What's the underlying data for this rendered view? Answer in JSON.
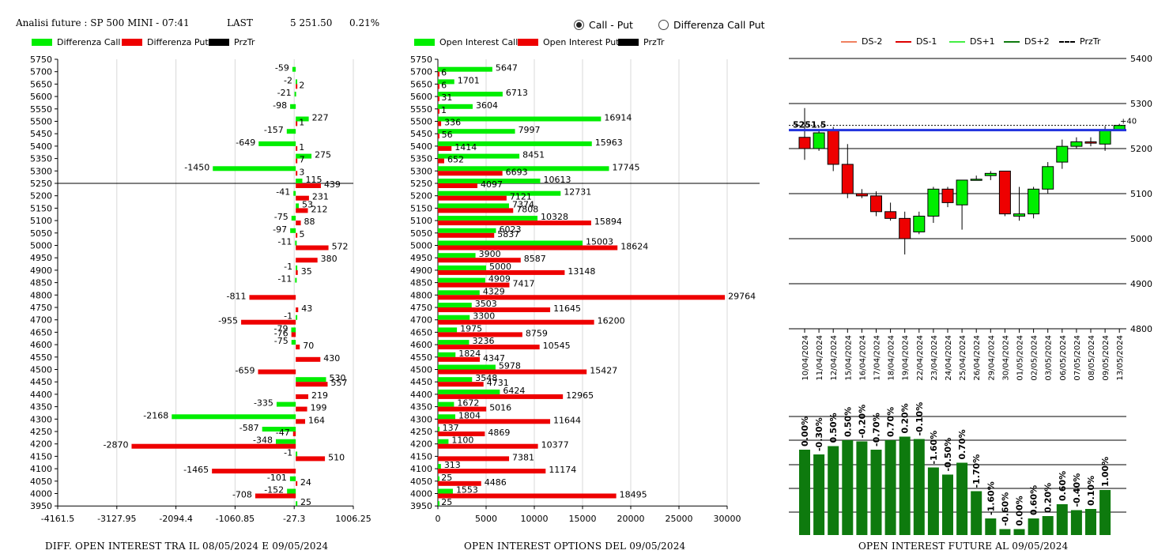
{
  "header": {
    "title": "Analisi future : SP 500 MINI - 07:41",
    "last_label": "LAST",
    "last_value": "5 251.50",
    "change": "0.21%"
  },
  "view_toggle": {
    "options": [
      "Call - Put",
      "Differenza Call Put"
    ],
    "selected": 0
  },
  "colors": {
    "call": "#00ee00",
    "put": "#ee0000",
    "price": "#000000",
    "future_bar": "#0e7a0e",
    "level_line": "#2233dd"
  },
  "chart_data": [
    {
      "id": "diff",
      "type": "bar",
      "orientation": "horizontal",
      "title": "DIFF. OPEN INTEREST TRA IL 08/05/2024 E 09/05/2024",
      "legend": [
        "Differenza Call",
        "Differenza Put",
        "PrzTr"
      ],
      "strikes": [
        5750,
        5700,
        5650,
        5600,
        5550,
        5500,
        5450,
        5400,
        5350,
        5300,
        5250,
        5200,
        5150,
        5100,
        5050,
        5000,
        4950,
        4900,
        4850,
        4800,
        4750,
        4700,
        4650,
        4600,
        4550,
        4500,
        4450,
        4400,
        4350,
        4300,
        4250,
        4200,
        4150,
        4100,
        4050,
        4000,
        3950
      ],
      "series": [
        {
          "name": "Differenza Call",
          "values": [
            null,
            -59,
            -2,
            -21,
            -98,
            227,
            -157,
            -649,
            275,
            -1450,
            115,
            -41,
            53,
            -75,
            -97,
            -11,
            null,
            -1,
            -11,
            null,
            null,
            -1,
            -79,
            -75,
            null,
            null,
            530,
            null,
            -335,
            -2168,
            -587,
            -348,
            -1,
            null,
            -101,
            -152,
            25
          ]
        },
        {
          "name": "Differenza Put",
          "values": [
            null,
            null,
            2,
            null,
            null,
            1,
            null,
            1,
            7,
            3,
            439,
            231,
            212,
            88,
            5,
            572,
            380,
            35,
            null,
            -811,
            43,
            -955,
            -76,
            70,
            430,
            -659,
            557,
            219,
            199,
            164,
            -47,
            -2870,
            510,
            -1465,
            24,
            -708,
            null
          ]
        }
      ],
      "price_line": 5250,
      "xticks": [
        "-4161.5",
        "-3127.95",
        "-2094.4",
        "-1060.85",
        "-27.3",
        "1006.25"
      ],
      "xlim": [
        -4161.5,
        1006.25
      ]
    },
    {
      "id": "oi",
      "type": "bar",
      "orientation": "horizontal",
      "title": "OPEN INTEREST OPTIONS DEL 09/05/2024",
      "legend": [
        "Open Interest Call",
        "Open Interest Put",
        "PrzTr"
      ],
      "strikes": [
        5750,
        5700,
        5650,
        5600,
        5550,
        5500,
        5450,
        5400,
        5350,
        5300,
        5250,
        5200,
        5150,
        5100,
        5050,
        5000,
        4950,
        4900,
        4850,
        4800,
        4750,
        4700,
        4650,
        4600,
        4550,
        4500,
        4450,
        4400,
        4350,
        4300,
        4250,
        4200,
        4150,
        4100,
        4050,
        4000,
        3950
      ],
      "series": [
        {
          "name": "Open Interest Call",
          "values": [
            null,
            5647,
            1701,
            6713,
            3604,
            16914,
            7997,
            15963,
            8451,
            17745,
            10613,
            12731,
            7374,
            10328,
            6023,
            15003,
            3900,
            5000,
            4909,
            4329,
            3503,
            3300,
            1975,
            3236,
            1824,
            5978,
            3548,
            6424,
            1672,
            1804,
            137,
            1100,
            null,
            313,
            25,
            1553,
            25
          ]
        },
        {
          "name": "Open Interest Put",
          "values": [
            null,
            6,
            6,
            31,
            1,
            336,
            56,
            1414,
            652,
            6693,
            4097,
            7121,
            7808,
            15894,
            5837,
            18624,
            8587,
            13148,
            7417,
            29764,
            11645,
            16200,
            8759,
            10545,
            4347,
            15427,
            4731,
            12965,
            5016,
            11644,
            4869,
            10377,
            7381,
            11174,
            4486,
            18495,
            null
          ]
        }
      ],
      "price_line": 5250,
      "xticks": [
        "0",
        "5000",
        "10000",
        "15000",
        "20000",
        "25000",
        "30000"
      ],
      "xlim": [
        0,
        30000
      ]
    },
    {
      "id": "candles",
      "type": "candlestick",
      "legend": [
        "DS-2",
        "DS-1",
        "DS+1",
        "DS+2",
        "PrzTr"
      ],
      "dates": [
        "10/04/2024",
        "11/04/2024",
        "12/04/2024",
        "15/04/2024",
        "16/04/2024",
        "17/04/2024",
        "18/04/2024",
        "19/04/2024",
        "22/04/2024",
        "23/04/2024",
        "24/04/2024",
        "25/04/2024",
        "26/04/2024",
        "29/04/2024",
        "30/04/2024",
        "01/05/2024",
        "02/05/2024",
        "03/05/2024",
        "06/05/2024",
        "07/05/2024",
        "08/05/2024",
        "09/05/2024",
        "13/05/2024"
      ],
      "ohlc": [
        [
          5225,
          5290,
          5175,
          5200
        ],
        [
          5200,
          5240,
          5195,
          5235
        ],
        [
          5240,
          5248,
          5150,
          5165
        ],
        [
          5165,
          5210,
          5090,
          5100
        ],
        [
          5100,
          5110,
          5090,
          5095
        ],
        [
          5095,
          5105,
          5050,
          5060
        ],
        [
          5060,
          5080,
          5040,
          5045
        ],
        [
          5045,
          5060,
          4965,
          5000
        ],
        [
          5015,
          5060,
          5010,
          5050
        ],
        [
          5050,
          5115,
          5035,
          5110
        ],
        [
          5110,
          5115,
          5070,
          5080
        ],
        [
          5075,
          5130,
          5020,
          5130
        ],
        [
          5130,
          5140,
          5130,
          5132
        ],
        [
          5140,
          5150,
          5130,
          5145
        ],
        [
          5150,
          5150,
          5050,
          5055
        ],
        [
          5050,
          5115,
          5040,
          5055
        ],
        [
          5055,
          5115,
          5045,
          5110
        ],
        [
          5110,
          5170,
          5100,
          5160
        ],
        [
          5170,
          5220,
          5155,
          5205
        ],
        [
          5205,
          5225,
          5200,
          5215
        ],
        [
          5215,
          5225,
          5205,
          5212
        ],
        [
          5210,
          5250,
          5195,
          5240
        ],
        [
          5240,
          5255,
          5240,
          5251.5
        ]
      ],
      "yticks": [
        "5400",
        "5300",
        "5200",
        "5100",
        "5000",
        "4900",
        "4800"
      ],
      "ylim": [
        4800,
        5400
      ],
      "price_label": "5251.5",
      "level_line": 5241,
      "delta_label": "+40"
    },
    {
      "id": "future_oi",
      "type": "bar",
      "title": "OPEN INTEREST FUTURE AL 09/05/2024",
      "labels": [
        "0.00%",
        "-0.30%",
        "0.50%",
        "0.50%",
        "-0.20%",
        "-0.70%",
        "0.70%",
        "0.20%",
        "-0.10%",
        "-1.60%",
        "-0.50%",
        "0.70%",
        "-1.70%",
        "-1.60%",
        "-0.60%",
        "0.00%",
        "0.60%",
        "0.20%",
        "0.60%",
        "-0.40%",
        "0.10%",
        "1.00%"
      ],
      "values": [
        0.0,
        -0.3,
        0.5,
        0.5,
        -0.2,
        -0.7,
        0.7,
        0.2,
        -0.1,
        -1.6,
        -0.5,
        0.7,
        -1.7,
        -1.6,
        -0.6,
        0.0,
        0.6,
        0.2,
        0.6,
        -0.4,
        0.1,
        1.0
      ],
      "level": [
        0.72,
        0.68,
        0.75,
        0.8,
        0.79,
        0.72,
        0.8,
        0.83,
        0.81,
        0.57,
        0.51,
        0.61,
        0.37,
        0.14,
        0.05,
        0.05,
        0.14,
        0.16,
        0.26,
        0.21,
        0.22,
        0.38
      ]
    }
  ]
}
